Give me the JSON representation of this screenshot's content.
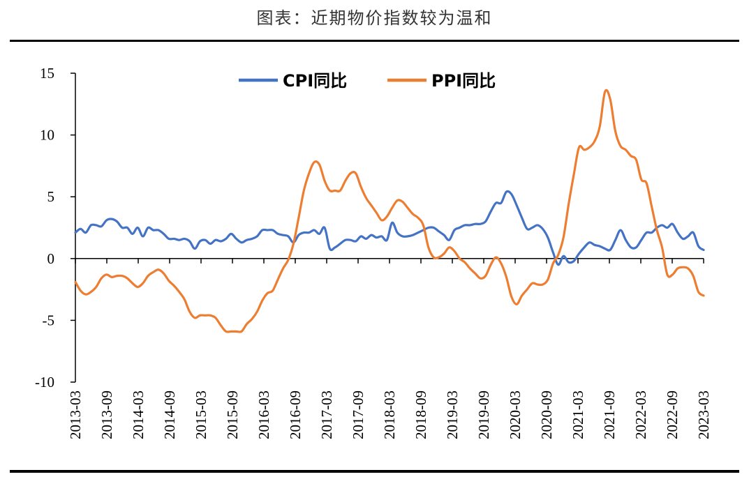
{
  "title": "图表：近期物价指数较为温和",
  "chart_data": {
    "type": "line",
    "title": "图表：近期物价指数较为温和",
    "xlabel": "",
    "ylabel": "",
    "ylim": [
      -10,
      15
    ],
    "yticks": [
      15,
      10,
      5,
      0,
      -5,
      -10
    ],
    "x_tick_labels": [
      "2013-03",
      "2013-09",
      "2014-03",
      "2014-09",
      "2015-03",
      "2015-09",
      "2016-03",
      "2016-09",
      "2017-03",
      "2017-09",
      "2018-03",
      "2018-09",
      "2019-03",
      "2019-09",
      "2020-03",
      "2020-09",
      "2021-03",
      "2021-09",
      "2022-03",
      "2022-09",
      "2023-03"
    ],
    "x_start": "2013-03",
    "x_end": "2023-03",
    "grid": false,
    "legend_position": "top-center",
    "series": [
      {
        "name": "CPI同比",
        "color": "#4472C4",
        "values": [
          2.1,
          2.4,
          2.1,
          2.7,
          2.7,
          2.6,
          3.1,
          3.2,
          3.0,
          2.5,
          2.5,
          2.0,
          2.5,
          1.8,
          2.5,
          2.3,
          2.3,
          2.0,
          1.6,
          1.6,
          1.5,
          1.6,
          1.4,
          0.8,
          1.4,
          1.5,
          1.2,
          1.5,
          1.4,
          1.6,
          2.0,
          1.6,
          1.3,
          1.5,
          1.6,
          1.8,
          2.3,
          2.3,
          2.3,
          2.0,
          1.9,
          1.8,
          1.3,
          1.9,
          2.1,
          2.1,
          2.3,
          2.0,
          2.5,
          0.8,
          0.9,
          1.2,
          1.5,
          1.5,
          1.4,
          1.8,
          1.6,
          1.9,
          1.7,
          1.8,
          1.5,
          2.9,
          2.1,
          1.8,
          1.8,
          1.9,
          2.1,
          2.3,
          2.5,
          2.5,
          2.2,
          1.9,
          1.5,
          2.3,
          2.5,
          2.7,
          2.7,
          2.8,
          2.8,
          3.0,
          3.8,
          4.5,
          4.5,
          5.4,
          5.2,
          4.3,
          3.3,
          2.4,
          2.5,
          2.7,
          2.4,
          1.7,
          0.5,
          -0.5,
          0.2,
          -0.3,
          -0.2,
          0.4,
          0.9,
          1.3,
          1.1,
          1.0,
          0.8,
          0.7,
          1.5,
          2.3,
          1.5,
          0.9,
          0.9,
          1.5,
          2.1,
          2.1,
          2.5,
          2.7,
          2.5,
          2.8,
          2.1,
          1.6,
          1.8,
          2.1,
          1.0,
          0.7
        ]
      },
      {
        "name": "PPI同比",
        "color": "#ED7D31",
        "values": [
          -1.9,
          -2.6,
          -2.9,
          -2.7,
          -2.3,
          -1.6,
          -1.3,
          -1.5,
          -1.4,
          -1.4,
          -1.6,
          -2.0,
          -2.3,
          -2.0,
          -1.4,
          -1.1,
          -0.9,
          -1.2,
          -1.8,
          -2.2,
          -2.7,
          -3.3,
          -4.3,
          -4.8,
          -4.6,
          -4.6,
          -4.6,
          -4.8,
          -5.4,
          -5.9,
          -5.9,
          -5.9,
          -5.9,
          -5.3,
          -4.9,
          -4.3,
          -3.4,
          -2.8,
          -2.6,
          -1.7,
          -0.8,
          -0.1,
          1.2,
          3.3,
          5.5,
          6.9,
          7.8,
          7.6,
          6.3,
          5.5,
          5.5,
          5.5,
          6.3,
          6.9,
          6.9,
          5.8,
          4.9,
          4.3,
          3.7,
          3.1,
          3.4,
          4.1,
          4.7,
          4.6,
          4.1,
          3.6,
          3.3,
          2.7,
          0.9,
          0.1,
          0.1,
          0.4,
          0.9,
          0.6,
          0.0,
          -0.3,
          -0.8,
          -1.2,
          -1.6,
          -1.4,
          -0.5,
          0.1,
          -0.4,
          -1.5,
          -3.1,
          -3.7,
          -3.0,
          -2.5,
          -2.0,
          -2.1,
          -2.1,
          -1.7,
          -0.4,
          0.3,
          1.7,
          4.4,
          6.8,
          9.0,
          8.8,
          9.0,
          9.5,
          10.7,
          13.5,
          12.9,
          10.3,
          9.1,
          8.8,
          8.3,
          8.0,
          6.4,
          6.1,
          4.2,
          2.3,
          0.9,
          -1.3,
          -1.3,
          -0.8,
          -0.7,
          -0.8,
          -1.4,
          -2.7,
          -3.0
        ]
      }
    ]
  }
}
